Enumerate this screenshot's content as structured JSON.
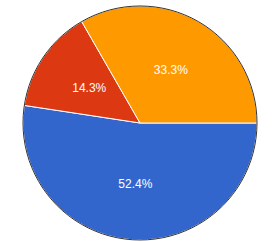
{
  "chart_data": {
    "type": "pie",
    "values": [
      52.4,
      14.3,
      33.3
    ],
    "value_labels": [
      "52.4%",
      "14.3%",
      "33.3%"
    ],
    "colors": [
      "#3366cc",
      "#dc3912",
      "#ff9900"
    ],
    "data_labels": true
  }
}
